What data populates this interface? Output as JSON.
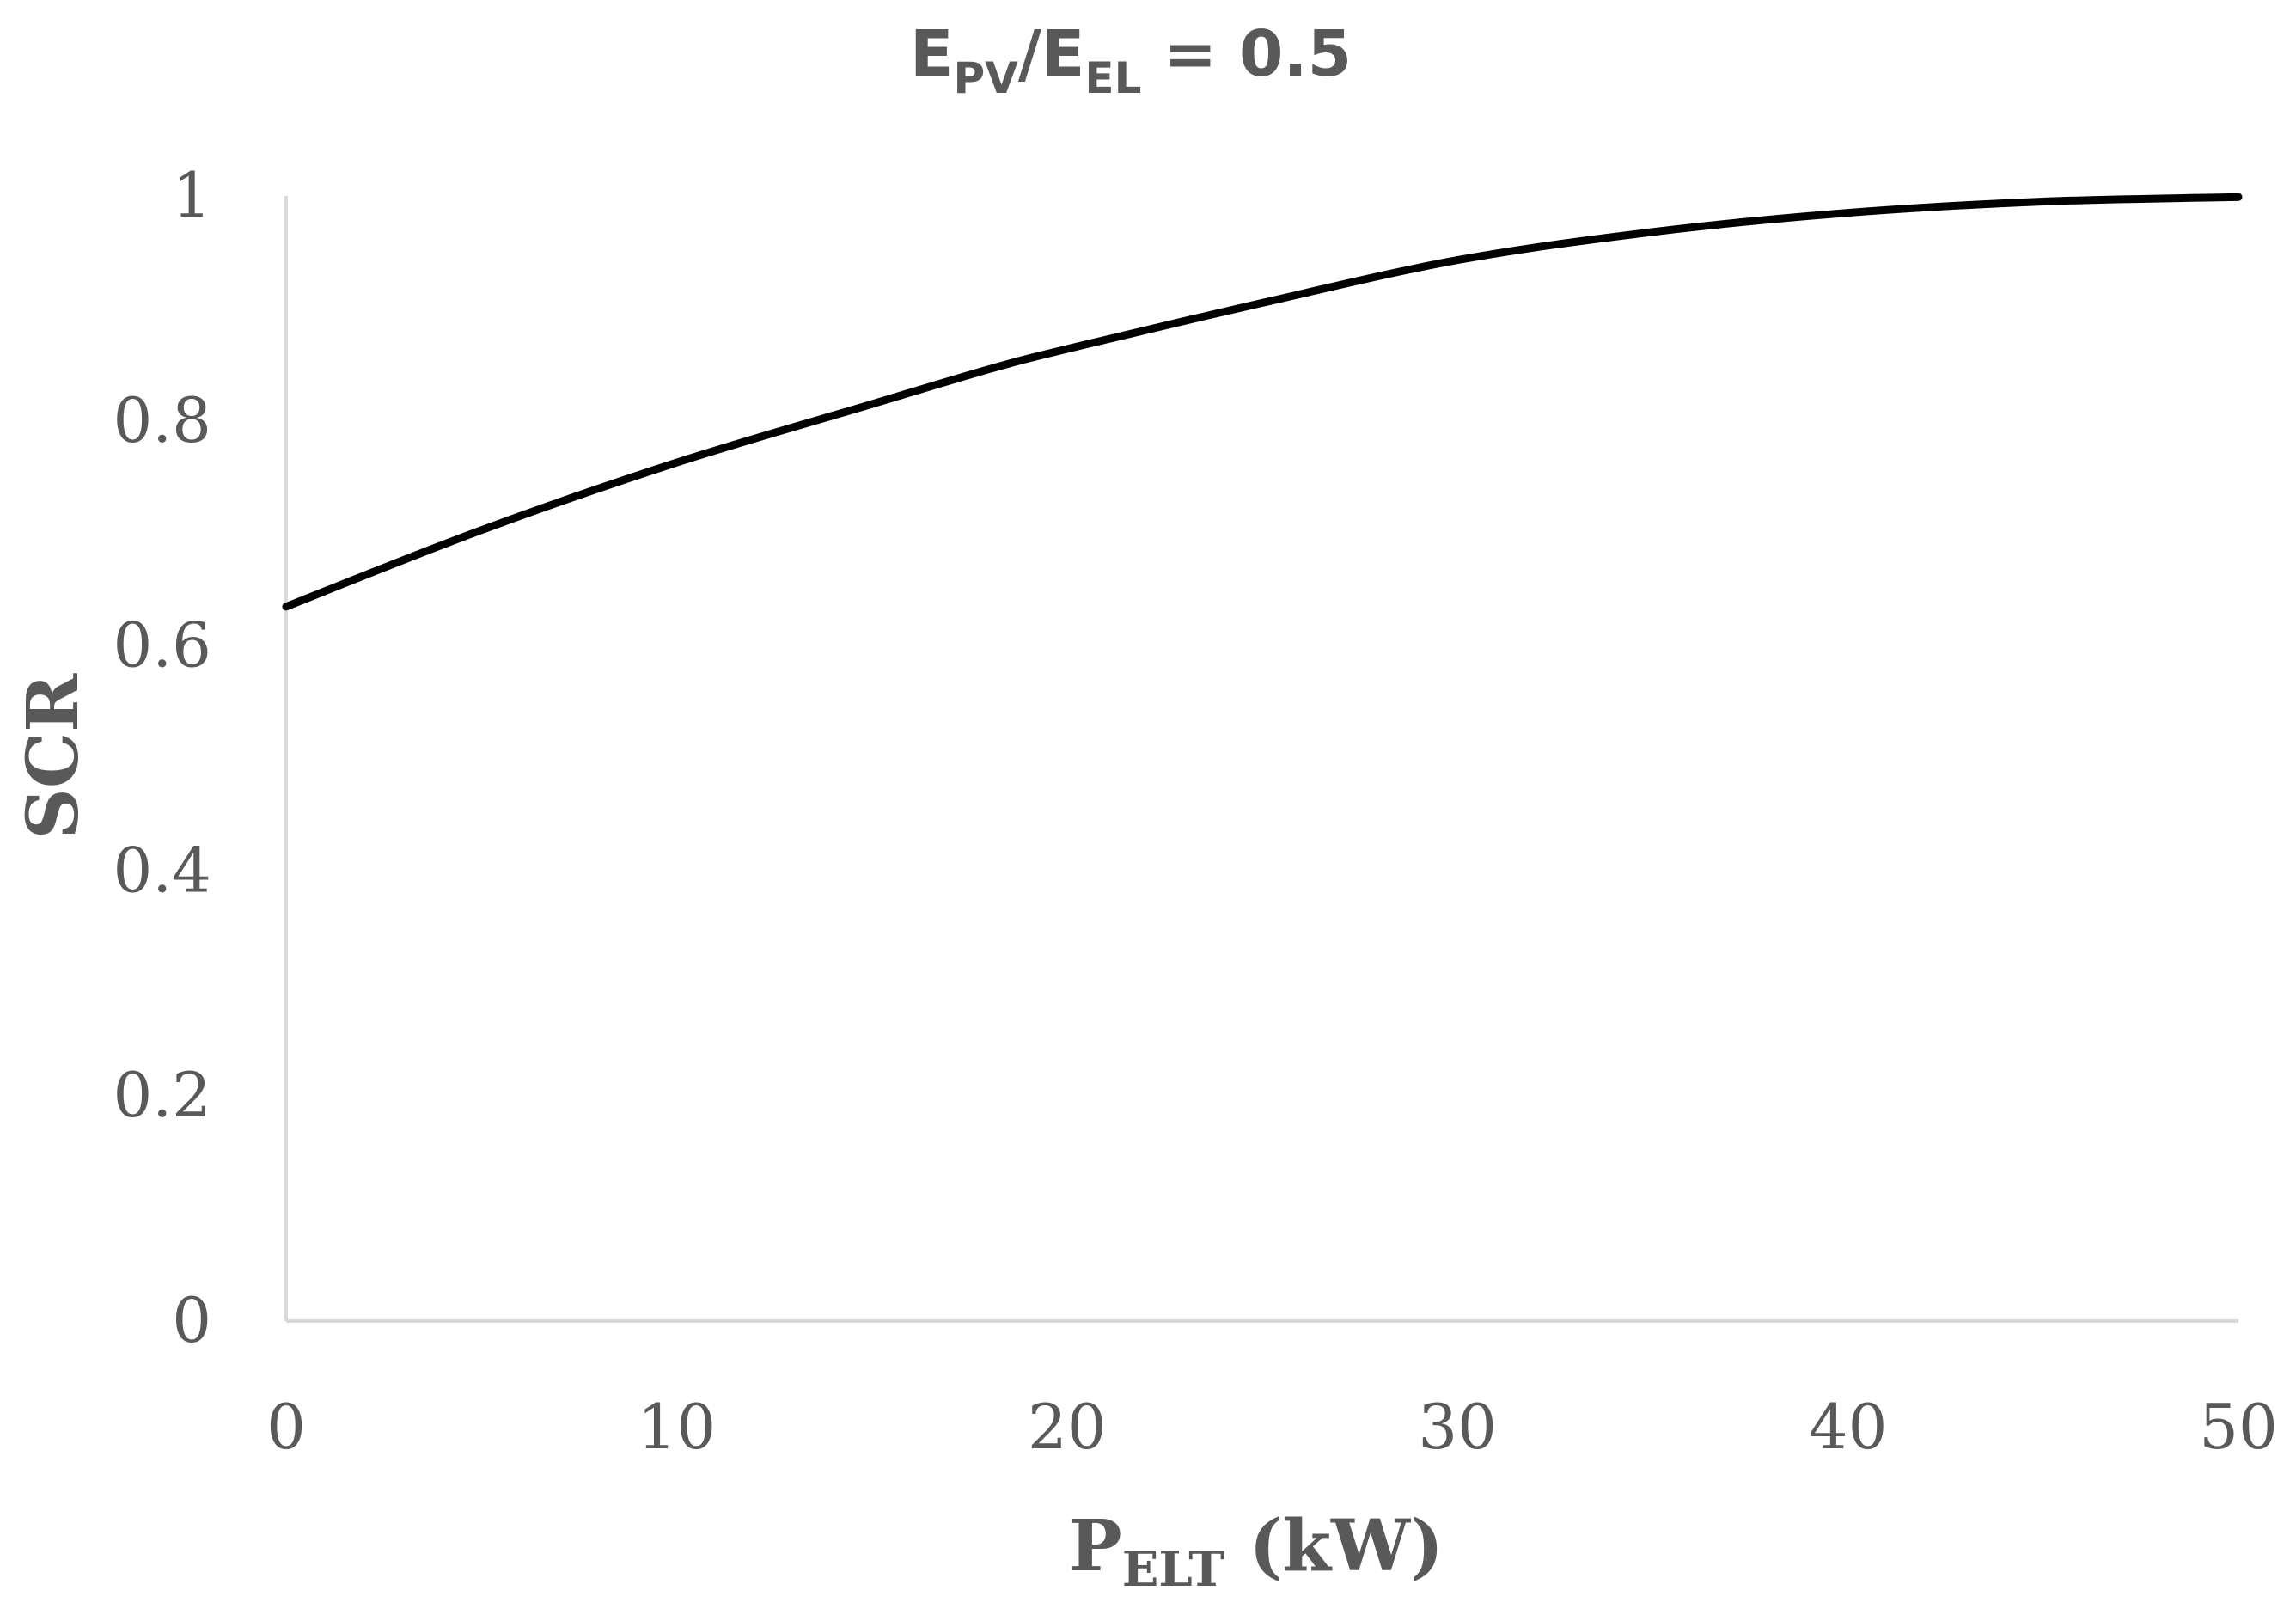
{
  "chart_data": {
    "type": "line",
    "title": {
      "prefix": "E",
      "sub1": "PV",
      "mid": "/E",
      "sub2": "EL",
      "suffix": " = 0.5"
    },
    "xlabel": {
      "prefix": "P",
      "sub": "ELT",
      "suffix": " (kW)"
    },
    "ylabel": "SCR",
    "xlim": [
      0,
      50
    ],
    "ylim": [
      0,
      1
    ],
    "xticks": [
      0,
      10,
      20,
      30,
      40,
      50
    ],
    "yticks": [
      0,
      0.2,
      0.4,
      0.6,
      0.8,
      1
    ],
    "xtick_labels": [
      "0",
      "10",
      "20",
      "30",
      "40",
      "50"
    ],
    "ytick_labels": [
      "0",
      "0.2",
      "0.4",
      "0.6",
      "0.8",
      "1"
    ],
    "grid": false,
    "legend": "none",
    "series": [
      {
        "name": "SCR",
        "color": "#000000",
        "x": [
          0,
          5,
          10,
          15,
          18,
          20,
          25,
          30,
          35,
          40,
          45,
          50
        ],
        "y": [
          0.635,
          0.703,
          0.763,
          0.815,
          0.846,
          0.864,
          0.905,
          0.943,
          0.968,
          0.985,
          0.995,
          0.999
        ]
      }
    ],
    "axis_color": "#d9d9d9",
    "text_color": "#595959"
  }
}
